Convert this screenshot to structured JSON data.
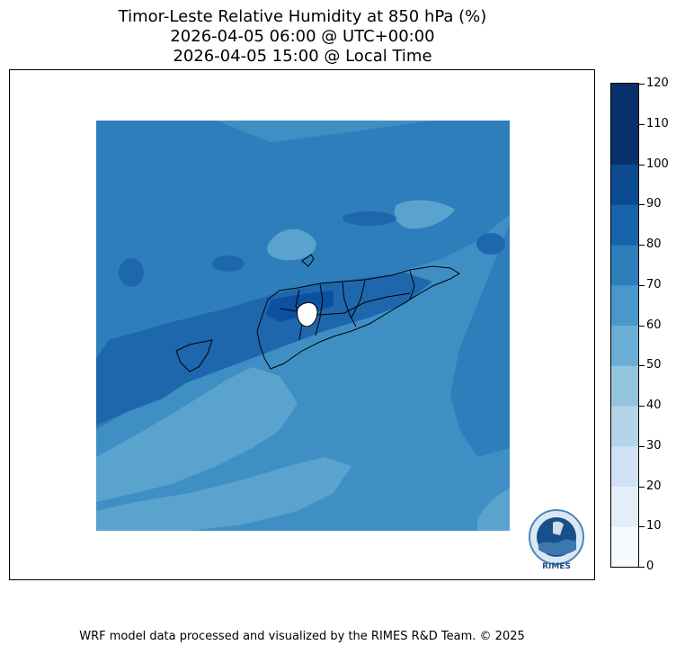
{
  "title": {
    "line1": "Timor-Leste Relative Humidity at 850 hPa (%)",
    "line2": "2026-04-05 06:00 @ UTC+00:00",
    "line3": "2026-04-05 15:00 @ Local Time"
  },
  "colorbar": {
    "ticks": [
      "0",
      "10",
      "20",
      "30",
      "40",
      "50",
      "60",
      "70",
      "80",
      "90",
      "100",
      "110",
      "120"
    ],
    "colors": [
      "#f7fbff",
      "#e3eef9",
      "#cfe1f2",
      "#b5d4e9",
      "#93c4de",
      "#6aaed6",
      "#4a98c9",
      "#2e7ebc",
      "#1764ab",
      "#0a4a90",
      "#08306b",
      "#08306b"
    ]
  },
  "field_colors": {
    "level_60_70": "#5aa3cf",
    "level_70_80": "#3f8fc5",
    "level_80_90": "#2f7ebc",
    "level_90_100": "#1f67ad",
    "level_100_110": "#0d50a0"
  },
  "logo": {
    "text": "RIMES"
  },
  "footer": "WRF model data processed and visualized by the RIMES R&D Team. © 2025"
}
